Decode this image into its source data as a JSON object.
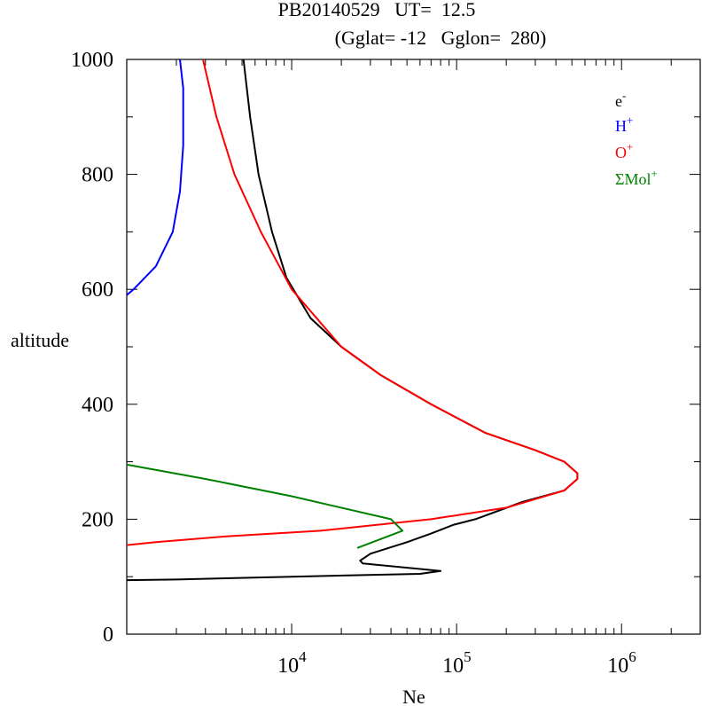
{
  "header": {
    "line1": "PB20140529   UT=  12.5",
    "line2": "(Gglat= -12   Gglon=  280)"
  },
  "chart_data": {
    "type": "line",
    "title": "",
    "xlabel": "Ne",
    "ylabel": "altitude",
    "xscale": "log",
    "xlim": [
      1000,
      3000000
    ],
    "ylim": [
      0,
      1000
    ],
    "y_ticks": [
      "0",
      "200",
      "400",
      "600",
      "800",
      "1000"
    ],
    "x_ticks": [
      {
        "base": "10",
        "exp": "4",
        "value": 10000
      },
      {
        "base": "10",
        "exp": "5",
        "value": 100000
      },
      {
        "base": "10",
        "exp": "6",
        "value": 1000000
      }
    ],
    "legend_position": "top-right",
    "series": [
      {
        "name": "e",
        "sup": "-",
        "color": "#000000",
        "points": [
          [
            5100,
            1000
          ],
          [
            5600,
            900
          ],
          [
            6300,
            800
          ],
          [
            7600,
            700
          ],
          [
            9300,
            620
          ],
          [
            13000,
            550
          ],
          [
            20000,
            500
          ],
          [
            35000,
            450
          ],
          [
            70000,
            400
          ],
          [
            150000,
            350
          ],
          [
            300000,
            320
          ],
          [
            450000,
            300
          ],
          [
            540000,
            280
          ],
          [
            540000,
            270
          ],
          [
            450000,
            250
          ],
          [
            250000,
            230
          ],
          [
            130000,
            200
          ],
          [
            95000,
            190
          ],
          [
            70000,
            175
          ],
          [
            50000,
            160
          ],
          [
            30000,
            140
          ],
          [
            26000,
            128
          ],
          [
            27000,
            123
          ],
          [
            80000,
            110
          ],
          [
            60000,
            105
          ],
          [
            10000,
            100
          ],
          [
            2000,
            95
          ],
          [
            1000,
            94
          ]
        ]
      },
      {
        "name": "H",
        "sup": "+",
        "color": "#0000ff",
        "points": [
          [
            2100,
            1000
          ],
          [
            2200,
            950
          ],
          [
            2200,
            850
          ],
          [
            2100,
            770
          ],
          [
            1900,
            700
          ],
          [
            1500,
            640
          ],
          [
            1100,
            600
          ],
          [
            1000,
            590
          ]
        ]
      },
      {
        "name": "O",
        "sup": "+",
        "color": "#ff0000",
        "points": [
          [
            2900,
            1000
          ],
          [
            3500,
            900
          ],
          [
            4500,
            800
          ],
          [
            6500,
            700
          ],
          [
            10000,
            600
          ],
          [
            20000,
            500
          ],
          [
            35000,
            450
          ],
          [
            70000,
            400
          ],
          [
            150000,
            350
          ],
          [
            300000,
            320
          ],
          [
            450000,
            300
          ],
          [
            540000,
            280
          ],
          [
            540000,
            270
          ],
          [
            450000,
            250
          ],
          [
            200000,
            220
          ],
          [
            70000,
            200
          ],
          [
            15000,
            180
          ],
          [
            4000,
            170
          ],
          [
            1500,
            160
          ],
          [
            1000,
            155
          ]
        ]
      },
      {
        "name": "ΣMol",
        "sup": "+",
        "color": "#008000",
        "points": [
          [
            1000,
            295
          ],
          [
            3000,
            270
          ],
          [
            10000,
            240
          ],
          [
            40000,
            200
          ],
          [
            47000,
            180
          ],
          [
            25000,
            150
          ]
        ]
      }
    ]
  }
}
